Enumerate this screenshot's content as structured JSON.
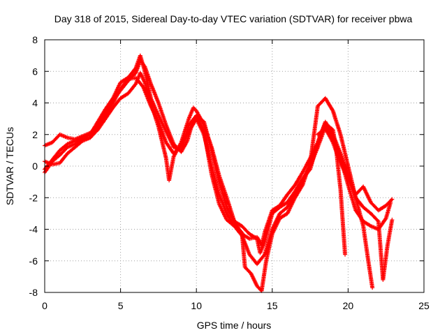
{
  "chart_data": {
    "type": "scatter",
    "title": "Day 318 of 2015, Sidereal Day-to-day VTEC variation (SDTVAR) for receiver pbwa",
    "xlabel": "GPS time / hours",
    "ylabel": "SDTVAR / TECUs",
    "xlim": [
      0,
      25
    ],
    "ylim": [
      -8,
      8
    ],
    "xticks": [
      0,
      5,
      10,
      15,
      20,
      25
    ],
    "yticks": [
      -8,
      -6,
      -4,
      -2,
      0,
      2,
      4,
      6,
      8
    ],
    "grid": true,
    "marker": "plus",
    "color": "#ff0000",
    "series": [
      {
        "values": [
          [
            0,
            1.3
          ],
          [
            0.5,
            1.5
          ],
          [
            1,
            2.0
          ],
          [
            1.5,
            1.8
          ],
          [
            2,
            1.7
          ],
          [
            2.5,
            1.9
          ],
          [
            3,
            2.1
          ],
          [
            3.5,
            2.6
          ],
          [
            4,
            3.4
          ],
          [
            4.5,
            4.2
          ],
          [
            5,
            4.8
          ],
          [
            5.5,
            5.4
          ],
          [
            6,
            5.9
          ],
          [
            6.3,
            6.7
          ],
          [
            6.6,
            6.3
          ],
          [
            7,
            5.2
          ],
          [
            7.5,
            4.0
          ],
          [
            8,
            2.6
          ],
          [
            8.5,
            1.4
          ],
          [
            9,
            0.9
          ],
          [
            9.4,
            1.6
          ],
          [
            9.7,
            2.6
          ],
          [
            10,
            3.2
          ],
          [
            10.5,
            2.8
          ],
          [
            11,
            1.0
          ],
          [
            11.5,
            -1.0
          ],
          [
            12,
            -2.6
          ],
          [
            12.5,
            -3.5
          ],
          [
            13,
            -3.8
          ],
          [
            13.5,
            -4.3
          ],
          [
            14,
            -4.6
          ],
          [
            14.2,
            -5.5
          ],
          [
            14.5,
            -4.8
          ],
          [
            15,
            -3.0
          ],
          [
            15.5,
            -2.6
          ],
          [
            16,
            -2.3
          ],
          [
            16.5,
            -1.6
          ],
          [
            17,
            -0.8
          ],
          [
            17.5,
            -0.2
          ],
          [
            18,
            1.5
          ],
          [
            18.5,
            2.7
          ],
          [
            19,
            2.3
          ],
          [
            19.2,
            1.2
          ],
          [
            19.5,
            -1.5
          ],
          [
            19.8,
            -5.6
          ]
        ]
      },
      {
        "values": [
          [
            0,
            -0.2
          ],
          [
            0.5,
            0.4
          ],
          [
            1,
            1.0
          ],
          [
            1.5,
            1.4
          ],
          [
            2,
            1.6
          ],
          [
            2.5,
            1.7
          ],
          [
            3,
            1.8
          ],
          [
            3.5,
            2.3
          ],
          [
            4,
            3.0
          ],
          [
            4.5,
            3.7
          ],
          [
            5,
            4.3
          ],
          [
            5.5,
            4.6
          ],
          [
            6,
            5.2
          ],
          [
            6.3,
            5.9
          ],
          [
            6.6,
            5.3
          ],
          [
            7,
            4.0
          ],
          [
            7.5,
            2.5
          ],
          [
            8,
            0.5
          ],
          [
            8.2,
            -0.9
          ],
          [
            8.5,
            0.6
          ],
          [
            9,
            1.5
          ],
          [
            9.5,
            3.0
          ],
          [
            9.8,
            3.7
          ],
          [
            10,
            3.5
          ],
          [
            10.5,
            2.6
          ],
          [
            11,
            1.2
          ],
          [
            11.5,
            -0.6
          ],
          [
            12,
            -2.0
          ],
          [
            12.5,
            -3.5
          ],
          [
            13,
            -4.3
          ],
          [
            13.5,
            -4.6
          ],
          [
            14,
            -4.5
          ],
          [
            14.3,
            -5.0
          ],
          [
            14.5,
            -4.2
          ],
          [
            15,
            -2.8
          ],
          [
            15.5,
            -2.5
          ],
          [
            16,
            -1.8
          ],
          [
            16.5,
            -1.2
          ],
          [
            17,
            -0.4
          ],
          [
            17.5,
            0.5
          ],
          [
            18,
            1.5
          ],
          [
            18.5,
            2.8
          ],
          [
            19,
            2.0
          ],
          [
            19.5,
            0.8
          ],
          [
            20,
            -0.5
          ],
          [
            20.5,
            -2.0
          ],
          [
            21,
            -3.8
          ],
          [
            21.3,
            -5.8
          ],
          [
            21.6,
            -7.7
          ]
        ]
      },
      {
        "values": [
          [
            0,
            0.3
          ],
          [
            0.5,
            0.1
          ],
          [
            1,
            0.2
          ],
          [
            1.5,
            0.8
          ],
          [
            2,
            1.2
          ],
          [
            2.5,
            1.6
          ],
          [
            3,
            1.8
          ],
          [
            3.5,
            2.5
          ],
          [
            4,
            3.2
          ],
          [
            4.5,
            4.0
          ],
          [
            5,
            4.9
          ],
          [
            5.5,
            5.5
          ],
          [
            6,
            5.6
          ],
          [
            6.5,
            5.0
          ],
          [
            7,
            3.8
          ],
          [
            7.5,
            2.8
          ],
          [
            8,
            1.5
          ],
          [
            8.5,
            0.8
          ],
          [
            9,
            1.3
          ],
          [
            9.5,
            2.2
          ],
          [
            10,
            3.0
          ],
          [
            10.5,
            2.0
          ],
          [
            11,
            0.0
          ],
          [
            11.5,
            -1.8
          ],
          [
            12,
            -3.0
          ],
          [
            12.5,
            -3.8
          ],
          [
            13,
            -4.4
          ],
          [
            13.5,
            -5.6
          ],
          [
            14,
            -6.2
          ],
          [
            14.5,
            -5.6
          ],
          [
            15,
            -4.0
          ],
          [
            15.5,
            -3.0
          ],
          [
            16,
            -2.6
          ],
          [
            16.5,
            -1.8
          ],
          [
            17,
            -0.9
          ],
          [
            17.5,
            0.0
          ],
          [
            18,
            1.2
          ],
          [
            18.5,
            2.5
          ],
          [
            19,
            1.8
          ],
          [
            19.5,
            0.5
          ],
          [
            20,
            -1.2
          ],
          [
            20.5,
            -2.8
          ],
          [
            21,
            -3.5
          ],
          [
            21.5,
            -3.8
          ],
          [
            22,
            -4.0
          ],
          [
            22.5,
            -3.3
          ],
          [
            22.8,
            -2.3
          ]
        ]
      },
      {
        "values": [
          [
            0,
            -0.4
          ],
          [
            0.5,
            0.3
          ],
          [
            1,
            0.7
          ],
          [
            1.5,
            1.2
          ],
          [
            2,
            1.4
          ],
          [
            2.5,
            1.8
          ],
          [
            3,
            2.0
          ],
          [
            3.5,
            2.8
          ],
          [
            4,
            3.6
          ],
          [
            4.5,
            4.3
          ],
          [
            5,
            5.3
          ],
          [
            5.5,
            5.6
          ],
          [
            6,
            6.2
          ],
          [
            6.3,
            7.0
          ],
          [
            6.6,
            6.0
          ],
          [
            7,
            4.3
          ],
          [
            7.5,
            3.2
          ],
          [
            8,
            2.2
          ],
          [
            8.5,
            1.2
          ],
          [
            9,
            1.0
          ],
          [
            9.5,
            2.6
          ],
          [
            10,
            3.2
          ],
          [
            10.5,
            2.2
          ],
          [
            11,
            -0.5
          ],
          [
            11.5,
            -2.4
          ],
          [
            12,
            -3.4
          ],
          [
            12.5,
            -3.8
          ],
          [
            13,
            -4.2
          ],
          [
            13.2,
            -6.4
          ],
          [
            13.6,
            -6.8
          ],
          [
            14,
            -7.6
          ],
          [
            14.3,
            -7.9
          ],
          [
            14.6,
            -6.0
          ],
          [
            15,
            -4.3
          ],
          [
            15.5,
            -3.3
          ],
          [
            16,
            -3.0
          ],
          [
            16.5,
            -2.0
          ],
          [
            17,
            -1.2
          ],
          [
            17.5,
            0.2
          ],
          [
            18,
            3.8
          ],
          [
            18.5,
            4.3
          ],
          [
            19,
            3.5
          ],
          [
            19.5,
            2.0
          ],
          [
            20,
            0.0
          ],
          [
            20.5,
            -2.0
          ],
          [
            21,
            -2.6
          ],
          [
            21.5,
            -3.0
          ],
          [
            22,
            -3.5
          ],
          [
            22.3,
            -7.2
          ],
          [
            22.6,
            -5.0
          ],
          [
            22.9,
            -3.4
          ]
        ]
      },
      {
        "values": [
          [
            18,
            2.0
          ],
          [
            18.5,
            2.4
          ],
          [
            19,
            1.5
          ],
          [
            19.5,
            0.2
          ],
          [
            20,
            -0.8
          ],
          [
            20.5,
            -1.8
          ],
          [
            21,
            -1.3
          ],
          [
            21.5,
            -2.3
          ],
          [
            22,
            -2.8
          ],
          [
            22.5,
            -2.5
          ],
          [
            22.9,
            -2.1
          ]
        ]
      }
    ]
  }
}
